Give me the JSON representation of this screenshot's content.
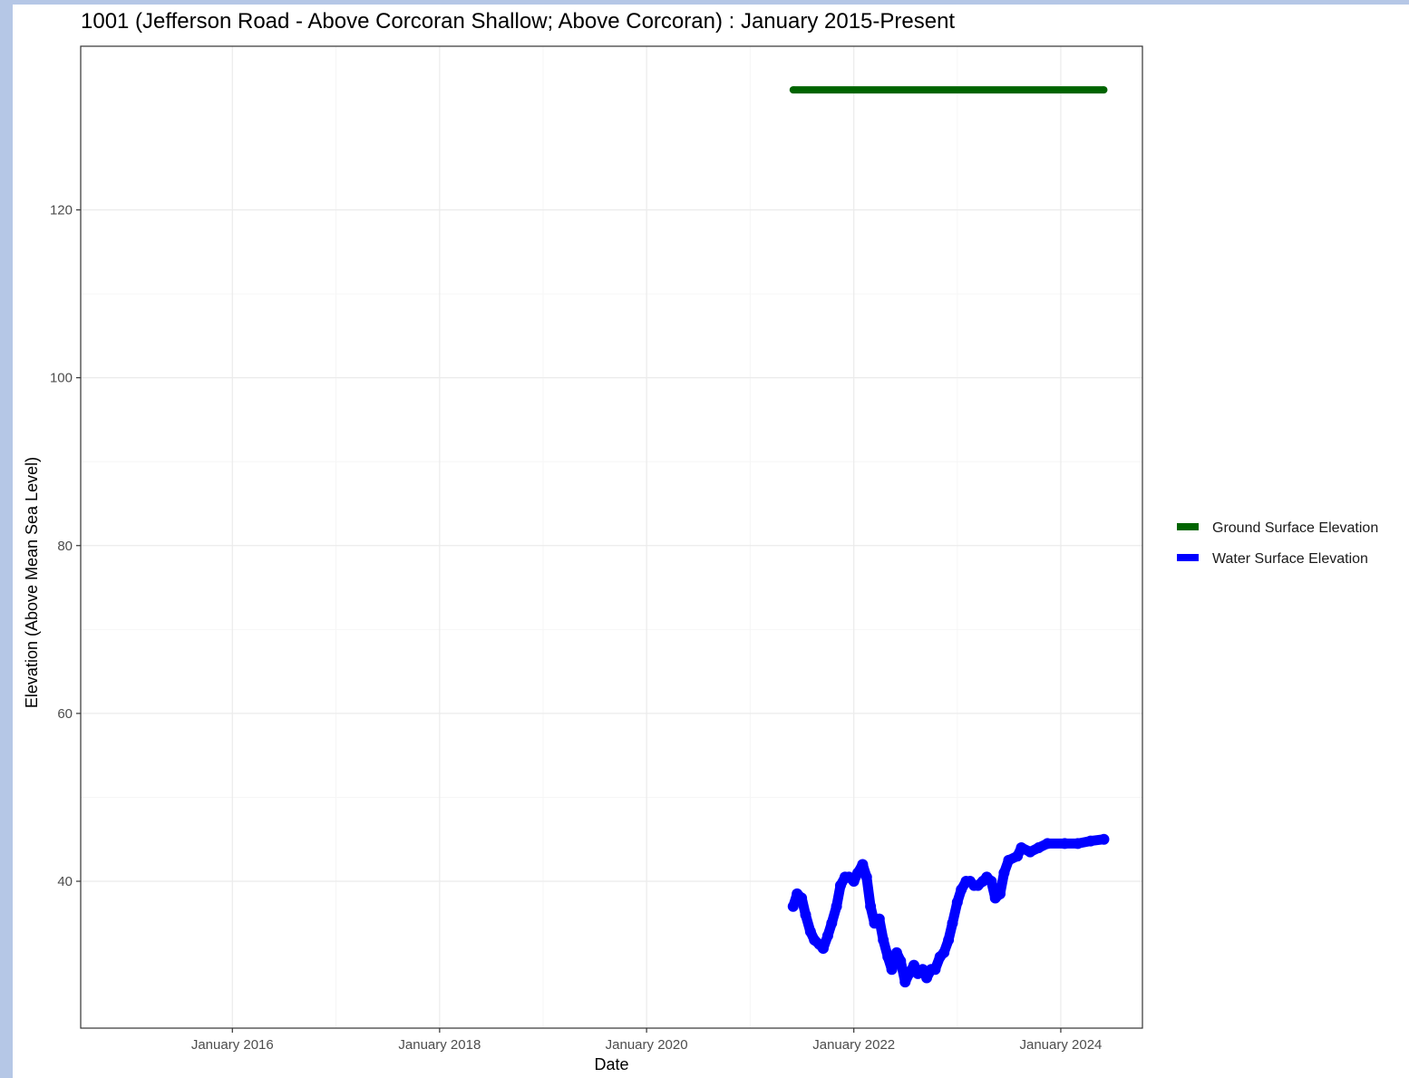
{
  "chart_data": {
    "type": "line",
    "title": "1001 (Jefferson Road - Above Corcoran Shallow; Above Corcoran) : January 2015-Present",
    "xlabel": "Date",
    "ylabel": "Elevation (Above Mean Sea Level)",
    "xlim": [
      "2014-07-15",
      "2024-10-15"
    ],
    "ylim": [
      22.5,
      139.5
    ],
    "x_ticks": [
      {
        "date": "2016-01-01",
        "label": "January 2016"
      },
      {
        "date": "2018-01-01",
        "label": "January 2018"
      },
      {
        "date": "2020-01-01",
        "label": "January 2020"
      },
      {
        "date": "2022-01-01",
        "label": "January 2022"
      },
      {
        "date": "2024-01-01",
        "label": "January 2024"
      }
    ],
    "y_ticks": [
      40,
      60,
      80,
      100,
      120
    ],
    "grid": true,
    "legend_position": "right",
    "series": [
      {
        "name": "Ground Surface Elevation",
        "color": "#006400",
        "points": [
          [
            "2021-06-01",
            134.3
          ],
          [
            "2024-06-01",
            134.3
          ]
        ]
      },
      {
        "name": "Water Surface Elevation",
        "color": "#0000ff",
        "points": [
          [
            "2021-06-01",
            37.0
          ],
          [
            "2021-06-15",
            38.5
          ],
          [
            "2021-07-01",
            38.0
          ],
          [
            "2021-07-15",
            36.0
          ],
          [
            "2021-08-01",
            34.0
          ],
          [
            "2021-08-15",
            33.0
          ],
          [
            "2021-09-01",
            32.5
          ],
          [
            "2021-09-15",
            32.0
          ],
          [
            "2021-10-01",
            33.5
          ],
          [
            "2021-10-15",
            35.0
          ],
          [
            "2021-11-01",
            37.0
          ],
          [
            "2021-11-15",
            39.5
          ],
          [
            "2021-12-01",
            40.5
          ],
          [
            "2021-12-15",
            40.5
          ],
          [
            "2022-01-01",
            40.0
          ],
          [
            "2022-01-15",
            41.0
          ],
          [
            "2022-02-01",
            42.0
          ],
          [
            "2022-02-15",
            40.5
          ],
          [
            "2022-03-01",
            37.0
          ],
          [
            "2022-03-15",
            35.0
          ],
          [
            "2022-04-01",
            35.5
          ],
          [
            "2022-04-15",
            33.0
          ],
          [
            "2022-05-01",
            31.0
          ],
          [
            "2022-05-15",
            29.5
          ],
          [
            "2022-06-01",
            31.5
          ],
          [
            "2022-06-15",
            30.5
          ],
          [
            "2022-07-01",
            28.0
          ],
          [
            "2022-07-15",
            29.0
          ],
          [
            "2022-08-01",
            30.0
          ],
          [
            "2022-08-15",
            29.0
          ],
          [
            "2022-09-01",
            29.5
          ],
          [
            "2022-09-15",
            28.5
          ],
          [
            "2022-10-01",
            29.5
          ],
          [
            "2022-10-15",
            29.5
          ],
          [
            "2022-11-01",
            31.0
          ],
          [
            "2022-11-15",
            31.5
          ],
          [
            "2022-12-01",
            33.0
          ],
          [
            "2022-12-15",
            35.0
          ],
          [
            "2023-01-01",
            37.5
          ],
          [
            "2023-01-15",
            39.0
          ],
          [
            "2023-02-01",
            40.0
          ],
          [
            "2023-02-15",
            40.0
          ],
          [
            "2023-03-01",
            39.5
          ],
          [
            "2023-03-15",
            39.5
          ],
          [
            "2023-04-01",
            40.0
          ],
          [
            "2023-04-15",
            40.5
          ],
          [
            "2023-05-01",
            40.0
          ],
          [
            "2023-05-15",
            38.0
          ],
          [
            "2023-06-01",
            38.5
          ],
          [
            "2023-06-15",
            41.0
          ],
          [
            "2023-07-01",
            42.5
          ],
          [
            "2023-08-01",
            43.0
          ],
          [
            "2023-08-15",
            44.0
          ],
          [
            "2023-09-15",
            43.5
          ],
          [
            "2023-10-15",
            44.0
          ],
          [
            "2023-11-15",
            44.5
          ],
          [
            "2024-01-15",
            44.5
          ],
          [
            "2024-03-01",
            44.5
          ],
          [
            "2024-04-15",
            44.8
          ],
          [
            "2024-06-01",
            45.0
          ]
        ]
      }
    ]
  }
}
